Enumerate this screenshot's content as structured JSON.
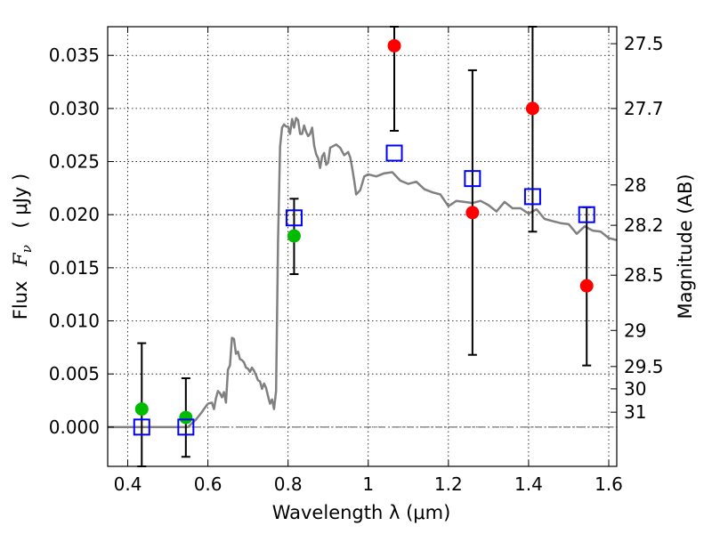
{
  "chart_data": {
    "type": "scatter",
    "xlabel": "Wavelength  λ (μm)",
    "ylabel": "Flux  F_ν  ( μJy )",
    "ylabel_parts": {
      "prefix": "Flux",
      "symbol": "F",
      "subscript": "ν",
      "suffix": "( μJy )"
    },
    "y2label": "Magnitude (AB)",
    "xlim": [
      0.35,
      1.62
    ],
    "ylim": [
      -0.0037,
      0.0377
    ],
    "grid": true,
    "x_ticks": [
      0.4,
      0.6,
      0.8,
      1.0,
      1.2,
      1.4,
      1.6
    ],
    "x_tick_labels": [
      "0.4",
      "0.6",
      "0.8",
      "1",
      "1.2",
      "1.4",
      "1.6"
    ],
    "y_ticks": [
      0.0,
      0.005,
      0.01,
      0.015,
      0.02,
      0.025,
      0.03,
      0.035
    ],
    "y_tick_labels": [
      "0.000",
      "0.005",
      "0.010",
      "0.015",
      "0.020",
      "0.025",
      "0.030",
      "0.035"
    ],
    "y2_ticks": [
      {
        "label": "27.5",
        "flux": 0.0361
      },
      {
        "label": "27.7",
        "flux": 0.03
      },
      {
        "label": "28",
        "flux": 0.0228
      },
      {
        "label": "28.2",
        "flux": 0.019
      },
      {
        "label": "28.5",
        "flux": 0.0143
      },
      {
        "label": "29",
        "flux": 0.0091
      },
      {
        "label": "29.5",
        "flux": 0.0057
      },
      {
        "label": "30",
        "flux": 0.0036
      },
      {
        "label": "31",
        "flux": 0.0014
      }
    ],
    "colors": {
      "model": "#808080",
      "observed_detection": "#ff0000",
      "observed_upper": "#00bb00",
      "model_photometry": "#0000ff",
      "errorbar": "#000000",
      "zero_line": "#555555"
    },
    "model_spectrum": {
      "x": [
        0.35,
        0.55,
        0.57,
        0.585,
        0.59,
        0.6,
        0.61,
        0.615,
        0.62,
        0.625,
        0.63,
        0.635,
        0.64,
        0.645,
        0.65,
        0.655,
        0.66,
        0.665,
        0.67,
        0.675,
        0.68,
        0.685,
        0.69,
        0.695,
        0.7,
        0.705,
        0.71,
        0.715,
        0.72,
        0.725,
        0.73,
        0.735,
        0.74,
        0.745,
        0.75,
        0.755,
        0.76,
        0.765,
        0.77,
        0.775,
        0.78,
        0.785,
        0.79,
        0.795,
        0.8,
        0.805,
        0.81,
        0.815,
        0.82,
        0.825,
        0.83,
        0.835,
        0.84,
        0.845,
        0.85,
        0.855,
        0.86,
        0.865,
        0.87,
        0.875,
        0.88,
        0.885,
        0.89,
        0.895,
        0.9,
        0.905,
        0.91,
        0.92,
        0.93,
        0.94,
        0.95,
        0.955,
        0.96,
        0.965,
        0.97,
        0.98,
        0.99,
        1.0,
        1.02,
        1.04,
        1.06,
        1.08,
        1.1,
        1.12,
        1.14,
        1.16,
        1.18,
        1.2,
        1.22,
        1.24,
        1.26,
        1.28,
        1.3,
        1.32,
        1.34,
        1.36,
        1.38,
        1.4,
        1.42,
        1.44,
        1.46,
        1.48,
        1.5,
        1.52,
        1.54,
        1.56,
        1.58,
        1.6,
        1.62
      ],
      "y": [
        0.0,
        0.0,
        0.0007,
        0.0014,
        0.0017,
        0.0022,
        0.0023,
        0.0017,
        0.0027,
        0.0034,
        0.0032,
        0.0028,
        0.0033,
        0.0023,
        0.0054,
        0.0058,
        0.0084,
        0.0083,
        0.0069,
        0.0071,
        0.0064,
        0.0063,
        0.0061,
        0.0056,
        0.0055,
        0.0052,
        0.0056,
        0.0053,
        0.0049,
        0.0044,
        0.0043,
        0.0036,
        0.0041,
        0.0037,
        0.0029,
        0.0022,
        0.0026,
        0.0017,
        0.0034,
        0.0175,
        0.0264,
        0.0282,
        0.0285,
        0.0283,
        0.0283,
        0.0276,
        0.029,
        0.0282,
        0.0291,
        0.0289,
        0.0276,
        0.0276,
        0.0284,
        0.0278,
        0.0274,
        0.0276,
        0.0282,
        0.0265,
        0.0257,
        0.0253,
        0.0244,
        0.0255,
        0.0258,
        0.0247,
        0.0249,
        0.0263,
        0.0264,
        0.0266,
        0.0263,
        0.0256,
        0.0259,
        0.0254,
        0.0244,
        0.0232,
        0.0219,
        0.0223,
        0.0236,
        0.0238,
        0.0236,
        0.0239,
        0.024,
        0.0232,
        0.0229,
        0.0231,
        0.0224,
        0.0221,
        0.0219,
        0.0208,
        0.0213,
        0.0212,
        0.0211,
        0.0213,
        0.0209,
        0.0203,
        0.0212,
        0.0206,
        0.0206,
        0.0201,
        0.0205,
        0.0196,
        0.0194,
        0.0192,
        0.0191,
        0.0182,
        0.0189,
        0.0185,
        0.0184,
        0.0178,
        0.0176
      ]
    },
    "series": [
      {
        "name": "",
        "marker": "circle",
        "color": "#ff0000",
        "points": [
          {
            "x": 1.065,
            "y": 0.0359,
            "yerr_low": 0.0279,
            "yerr_high": 0.0377
          },
          {
            "x": 1.26,
            "y": 0.0202,
            "yerr_low": 0.0068,
            "yerr_high": 0.0336
          },
          {
            "x": 1.41,
            "y": 0.03,
            "yerr_low": 0.0184,
            "yerr_high": 0.0377
          },
          {
            "x": 1.545,
            "y": 0.0133,
            "yerr_low": 0.0058,
            "yerr_high": 0.0207
          }
        ]
      },
      {
        "name": "",
        "marker": "circle",
        "color": "#00bb00",
        "points": [
          {
            "x": 0.435,
            "y": 0.0017,
            "yerr_low": -0.0037,
            "yerr_high": 0.0079
          },
          {
            "x": 0.545,
            "y": 0.0009,
            "yerr_low": -0.0028,
            "yerr_high": 0.0046
          },
          {
            "x": 0.815,
            "y": 0.018,
            "yerr_low": 0.0144,
            "yerr_high": 0.0215
          }
        ]
      },
      {
        "name": "",
        "marker": "open-square",
        "color": "#0000ff",
        "points": [
          {
            "x": 0.435,
            "y": 0.0
          },
          {
            "x": 0.545,
            "y": 0.0
          },
          {
            "x": 0.815,
            "y": 0.0197
          },
          {
            "x": 1.065,
            "y": 0.0258
          },
          {
            "x": 1.26,
            "y": 0.0234
          },
          {
            "x": 1.41,
            "y": 0.0217
          },
          {
            "x": 1.545,
            "y": 0.02
          }
        ]
      }
    ]
  }
}
